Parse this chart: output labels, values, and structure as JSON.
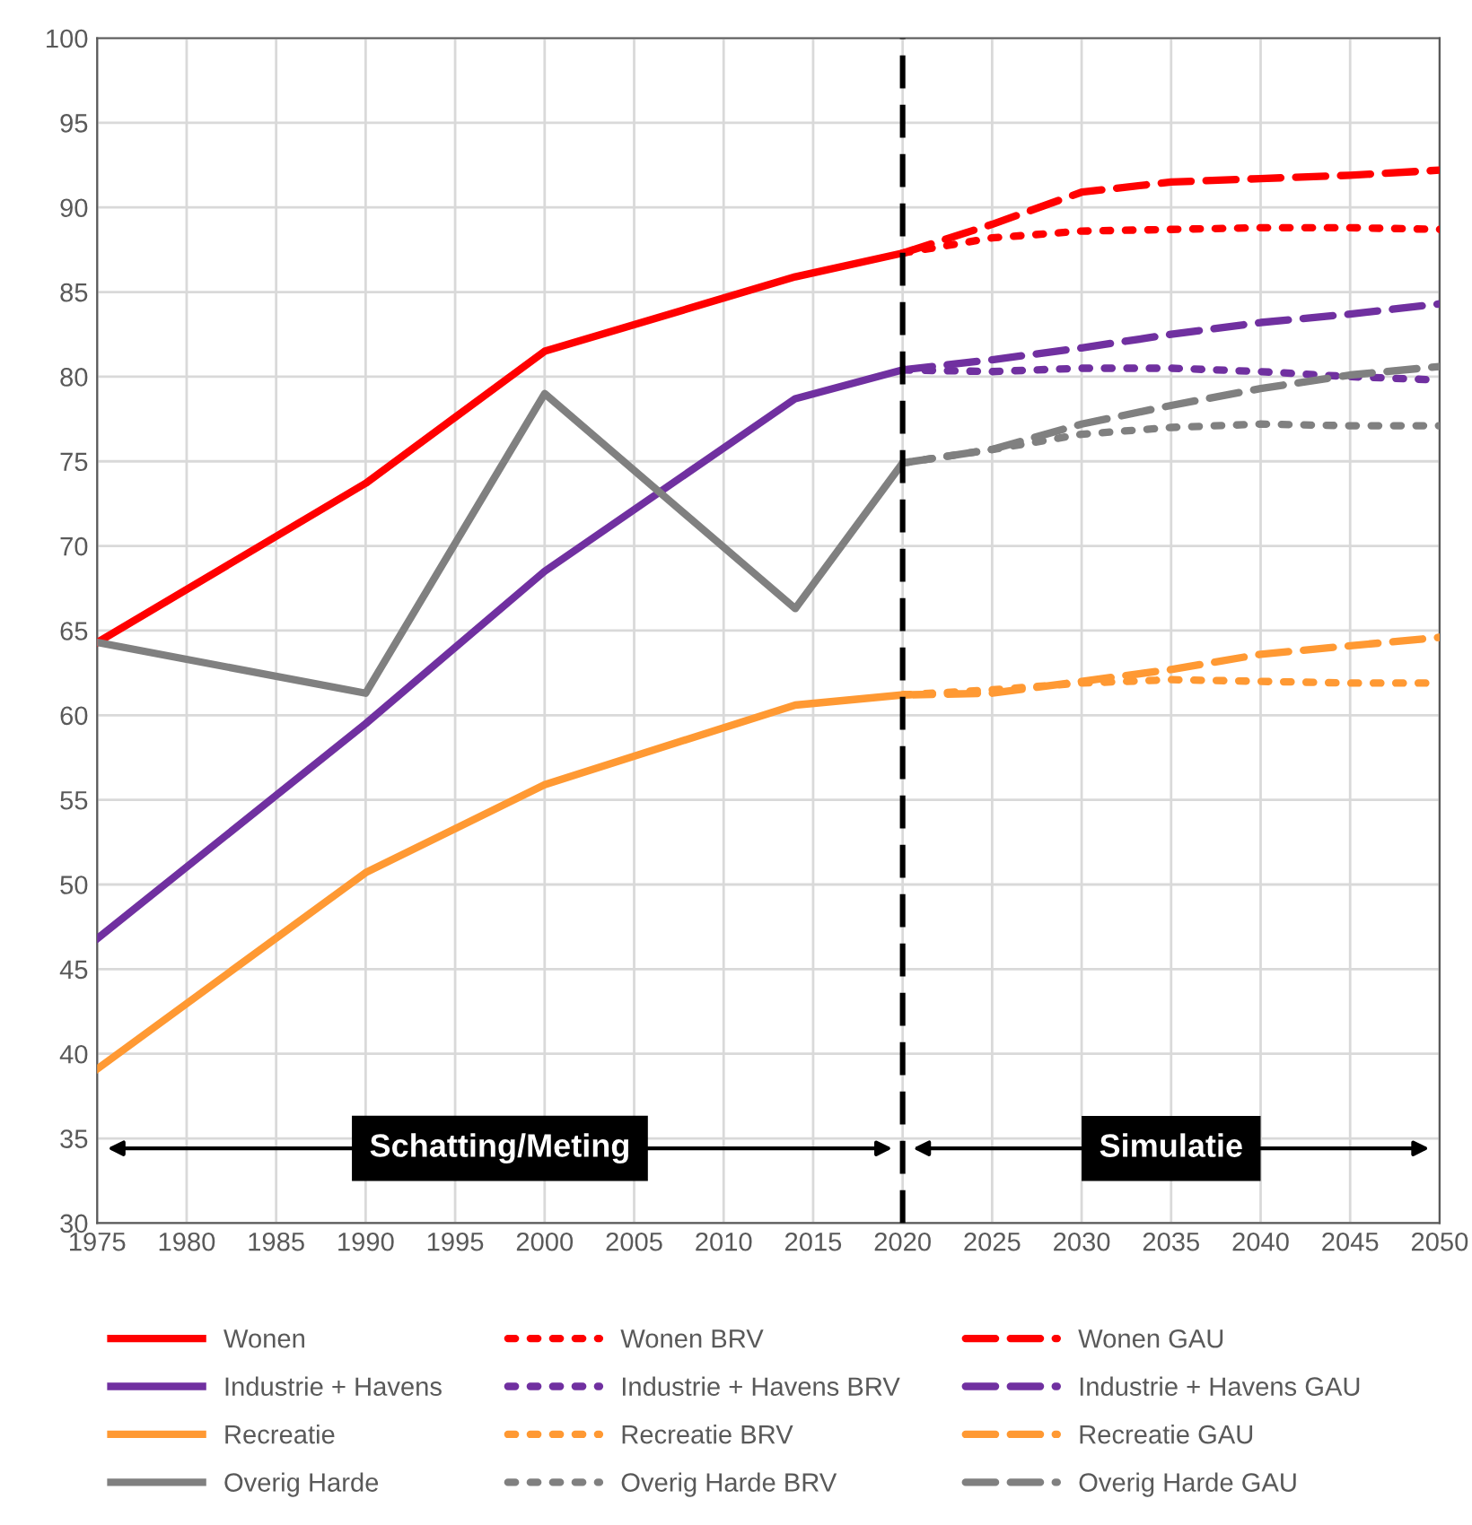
{
  "chart_data": {
    "type": "line",
    "xlim": [
      1975,
      2050
    ],
    "xticks": [
      1975,
      1980,
      1985,
      1990,
      1995,
      2000,
      2005,
      2010,
      2015,
      2020,
      2025,
      2030,
      2035,
      2040,
      2045,
      2050
    ],
    "ylim": [
      30,
      100
    ],
    "yticks": [
      30,
      35,
      40,
      45,
      50,
      55,
      60,
      65,
      70,
      75,
      80,
      85,
      90,
      95,
      100
    ],
    "grid": true,
    "legend": "bottom",
    "ref_lines": [
      {
        "axis": "x",
        "value": 2020,
        "color": "#000000",
        "line_style": "dashed"
      }
    ],
    "annotations": [
      "Schatting/Meting",
      "Simulatie"
    ],
    "series": [
      {
        "name": "Wonen",
        "color": "#ff0000",
        "line_style": "solid",
        "x": [
          1975,
          1990,
          2000,
          2014,
          2020
        ],
        "values": [
          64.3,
          73.7,
          81.5,
          85.9,
          87.3
        ]
      },
      {
        "name": "Industrie + Havens",
        "color": "#7030a0",
        "line_style": "solid",
        "x": [
          1975,
          1990,
          2000,
          2014,
          2020
        ],
        "values": [
          46.8,
          59.5,
          68.5,
          78.7,
          80.4
        ]
      },
      {
        "name": "Recreatie",
        "color": "#ff9933",
        "line_style": "solid",
        "x": [
          1975,
          1990,
          2000,
          2014,
          2020
        ],
        "values": [
          39.1,
          50.7,
          55.9,
          60.6,
          61.2
        ]
      },
      {
        "name": "Overig Harde",
        "color": "#808080",
        "line_style": "solid",
        "x": [
          1975,
          1990,
          2000,
          2014,
          2020
        ],
        "values": [
          64.3,
          61.3,
          79.0,
          66.3,
          74.9
        ]
      },
      {
        "name": "Wonen BRV",
        "color": "#ff0000",
        "line_style": "dotted",
        "x": [
          2020,
          2025,
          2030,
          2035,
          2040,
          2045,
          2050
        ],
        "values": [
          87.3,
          88.2,
          88.6,
          88.7,
          88.8,
          88.8,
          88.7
        ]
      },
      {
        "name": "Industrie + Havens BRV",
        "color": "#7030a0",
        "line_style": "dotted",
        "x": [
          2020,
          2025,
          2030,
          2035,
          2040,
          2045,
          2050
        ],
        "values": [
          80.4,
          80.3,
          80.5,
          80.5,
          80.3,
          80.0,
          79.8
        ]
      },
      {
        "name": "Recreatie BRV",
        "color": "#ff9933",
        "line_style": "dotted",
        "x": [
          2020,
          2025,
          2030,
          2035,
          2040,
          2045,
          2050
        ],
        "values": [
          61.2,
          61.5,
          61.9,
          62.1,
          62.0,
          61.9,
          61.9
        ]
      },
      {
        "name": "Overig Harde BRV",
        "color": "#808080",
        "line_style": "dotted",
        "x": [
          2020,
          2025,
          2030,
          2035,
          2040,
          2045,
          2050
        ],
        "values": [
          74.9,
          75.7,
          76.6,
          77.0,
          77.2,
          77.1,
          77.1
        ]
      },
      {
        "name": "Wonen GAU",
        "color": "#ff0000",
        "line_style": "dashed",
        "x": [
          2020,
          2025,
          2030,
          2035,
          2040,
          2045,
          2050
        ],
        "values": [
          87.3,
          89.0,
          90.9,
          91.5,
          91.7,
          91.9,
          92.2
        ]
      },
      {
        "name": "Industrie + Havens GAU",
        "color": "#7030a0",
        "line_style": "dashed",
        "x": [
          2020,
          2025,
          2030,
          2035,
          2040,
          2045,
          2050
        ],
        "values": [
          80.4,
          81.0,
          81.7,
          82.5,
          83.2,
          83.7,
          84.3
        ]
      },
      {
        "name": "Recreatie GAU",
        "color": "#ff9933",
        "line_style": "dashed",
        "x": [
          2020,
          2025,
          2030,
          2035,
          2040,
          2045,
          2050
        ],
        "values": [
          61.2,
          61.3,
          62.0,
          62.7,
          63.6,
          64.1,
          64.6
        ]
      },
      {
        "name": "Overig Harde GAU",
        "color": "#808080",
        "line_style": "dashed",
        "x": [
          2020,
          2025,
          2030,
          2035,
          2040,
          2045,
          2050
        ],
        "values": [
          74.9,
          75.7,
          77.2,
          78.3,
          79.3,
          80.1,
          80.6
        ]
      }
    ]
  }
}
